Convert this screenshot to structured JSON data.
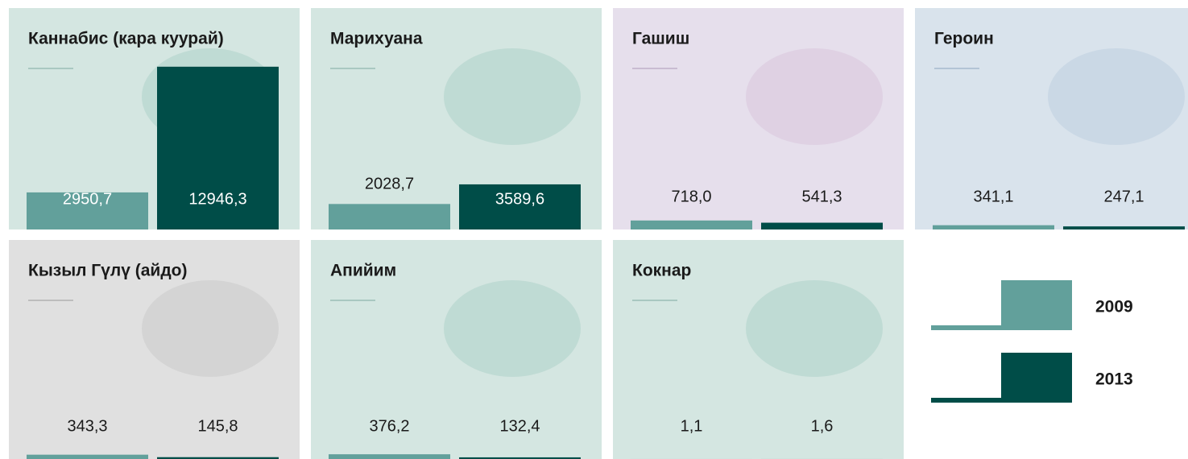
{
  "chart_data": {
    "type": "bar",
    "categories": [
      "Каннабис (кара куурай)",
      "Марихуана",
      "Гашиш",
      "Героин",
      "Кызыл Гүлү (айдо)",
      "Апийим",
      "Кокнар"
    ],
    "series": [
      {
        "name": "2009",
        "color": "#62a09b",
        "values": [
          2950.7,
          2028.7,
          718.0,
          341.1,
          343.3,
          376.2,
          1.1
        ],
        "value_labels": [
          "2950,7",
          "2028,7",
          "718,0",
          "341,1",
          "343,3",
          "376,2",
          "1,1"
        ]
      },
      {
        "name": "2013",
        "color": "#004d48",
        "values": [
          12946.3,
          3589.6,
          541.3,
          247.1,
          145.8,
          132.4,
          1.6
        ],
        "value_labels": [
          "12946,3",
          "3589,6",
          "541,3",
          "247,1",
          "145,8",
          "132,4",
          "1,6"
        ]
      }
    ],
    "ylim": [
      0,
      13000
    ]
  }
}
